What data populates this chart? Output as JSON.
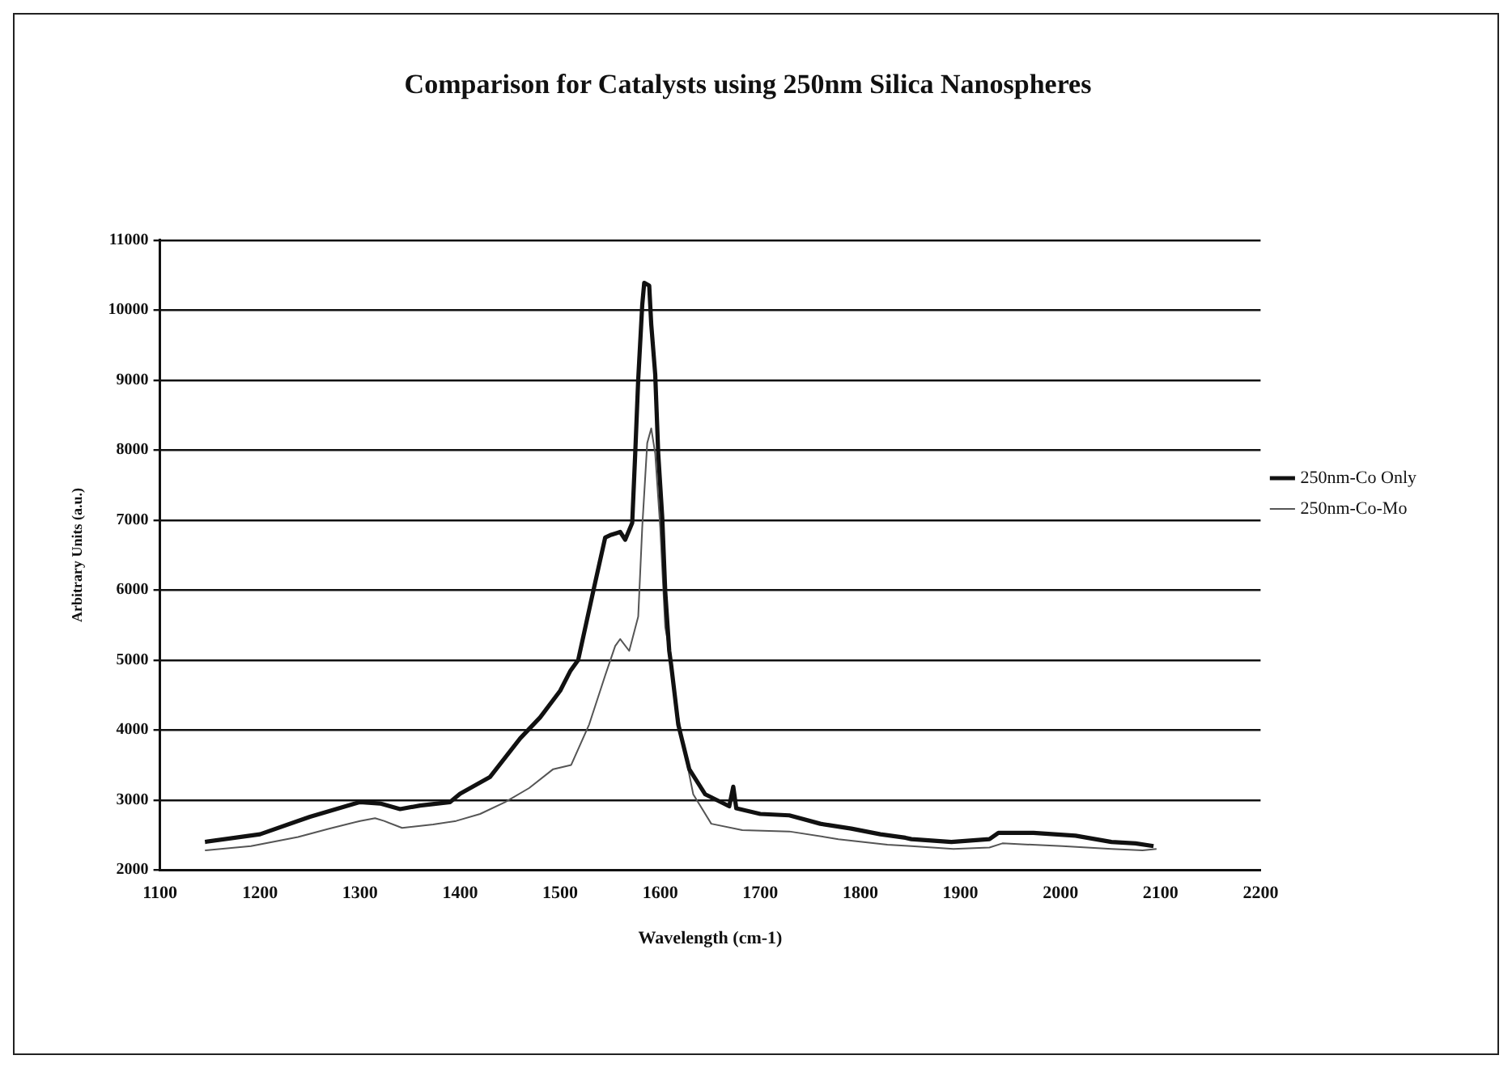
{
  "chart_data": {
    "type": "line",
    "title": "Comparison for Catalysts using 250nm Silica Nanospheres",
    "xlabel": "Wavelength (cm-1)",
    "ylabel": "Arbitrary Units (a.u.)",
    "xlim": [
      1100,
      2200
    ],
    "xticks": [
      1100,
      1200,
      1300,
      1400,
      1500,
      1600,
      1700,
      1800,
      1900,
      2000,
      2100,
      2200
    ],
    "ylim": [
      2000,
      11000
    ],
    "yticks": [
      2000,
      3000,
      4000,
      5000,
      6000,
      7000,
      8000,
      9000,
      10000,
      11000
    ],
    "grid": "y",
    "legend": "right",
    "marker": "none",
    "line_style": "solid",
    "series": [
      {
        "name": "250nm-Co Only",
        "color": "#111111",
        "x": [
          1145,
          1200,
          1250,
          1300,
          1320,
          1340,
          1360,
          1390,
          1400,
          1430,
          1460,
          1480,
          1500,
          1510,
          1518,
          1533,
          1545,
          1551,
          1560,
          1565,
          1572,
          1575,
          1578,
          1582,
          1584,
          1589,
          1591,
          1595,
          1598,
          1602,
          1605,
          1609,
          1611,
          1618,
          1629,
          1645,
          1669,
          1673,
          1676,
          1700,
          1729,
          1760,
          1791,
          1820,
          1845,
          1851,
          1891,
          1929,
          1938,
          1973,
          2015,
          2051,
          2075,
          2093
        ],
        "values": [
          2400,
          2510,
          2760,
          2970,
          2950,
          2870,
          2920,
          2970,
          3090,
          3330,
          3880,
          4180,
          4560,
          4840,
          5000,
          5980,
          6750,
          6790,
          6830,
          6720,
          6960,
          7950,
          9010,
          10070,
          10390,
          10350,
          9800,
          9080,
          7950,
          7040,
          5980,
          5130,
          4920,
          4080,
          3440,
          3080,
          2910,
          3190,
          2880,
          2800,
          2780,
          2660,
          2590,
          2510,
          2460,
          2440,
          2400,
          2440,
          2530,
          2530,
          2490,
          2400,
          2380,
          2340
        ]
      },
      {
        "name": "250nm-Co-Mo",
        "color": "#555555",
        "x": [
          1145,
          1191,
          1238,
          1269,
          1300,
          1315,
          1324,
          1342,
          1373,
          1396,
          1420,
          1445,
          1469,
          1493,
          1511,
          1529,
          1545,
          1555,
          1560,
          1569,
          1578,
          1582,
          1587,
          1591,
          1595,
          1600,
          1605,
          1611,
          1615,
          1624,
          1633,
          1651,
          1682,
          1729,
          1778,
          1827,
          1851,
          1893,
          1929,
          1942,
          2002,
          2051,
          2082,
          2096
        ],
        "values": [
          2280,
          2340,
          2470,
          2590,
          2700,
          2740,
          2700,
          2600,
          2650,
          2700,
          2800,
          2970,
          3170,
          3440,
          3500,
          4080,
          4780,
          5200,
          5300,
          5130,
          5620,
          6890,
          8100,
          8310,
          7950,
          6890,
          5470,
          4990,
          4420,
          3720,
          3080,
          2660,
          2570,
          2550,
          2440,
          2360,
          2340,
          2300,
          2320,
          2380,
          2340,
          2300,
          2280,
          2300
        ]
      }
    ]
  }
}
